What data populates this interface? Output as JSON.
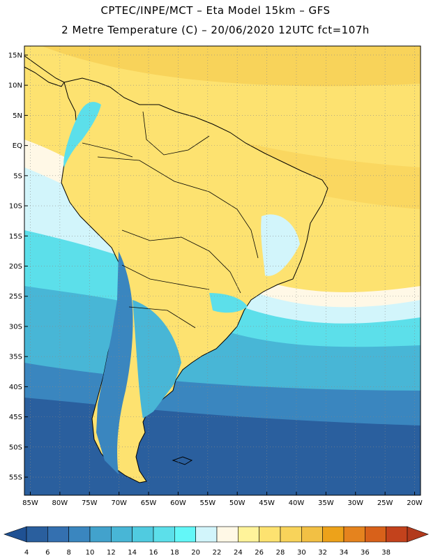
{
  "header": {
    "line1": "CPTEC/INPE/MCT –  Eta Model 15km – GFS",
    "line2": "2 Metre Temperature (C) – 20/06/2020 12UTC fct=107h"
  },
  "lat_labels": [
    {
      "v": 15,
      "t": "15N"
    },
    {
      "v": 10,
      "t": "10N"
    },
    {
      "v": 5,
      "t": "5N"
    },
    {
      "v": 0,
      "t": "EQ"
    },
    {
      "v": -5,
      "t": "5S"
    },
    {
      "v": -10,
      "t": "10S"
    },
    {
      "v": -15,
      "t": "15S"
    },
    {
      "v": -20,
      "t": "20S"
    },
    {
      "v": -25,
      "t": "25S"
    },
    {
      "v": -30,
      "t": "30S"
    },
    {
      "v": -35,
      "t": "35S"
    },
    {
      "v": -40,
      "t": "40S"
    },
    {
      "v": -45,
      "t": "45S"
    },
    {
      "v": -50,
      "t": "50S"
    },
    {
      "v": -55,
      "t": "55S"
    }
  ],
  "lon_labels": [
    {
      "v": -85,
      "t": "85W"
    },
    {
      "v": -80,
      "t": "80W"
    },
    {
      "v": -75,
      "t": "75W"
    },
    {
      "v": -70,
      "t": "70W"
    },
    {
      "v": -65,
      "t": "65W"
    },
    {
      "v": -60,
      "t": "60W"
    },
    {
      "v": -55,
      "t": "55W"
    },
    {
      "v": -50,
      "t": "50W"
    },
    {
      "v": -45,
      "t": "45W"
    },
    {
      "v": -40,
      "t": "40W"
    },
    {
      "v": -35,
      "t": "35W"
    },
    {
      "v": -30,
      "t": "30W"
    },
    {
      "v": -25,
      "t": "25W"
    },
    {
      "v": -20,
      "t": "20W"
    }
  ],
  "colorbar": {
    "labels": [
      "4",
      "6",
      "8",
      "10",
      "12",
      "14",
      "16",
      "18",
      "20",
      "22",
      "24",
      "26",
      "28",
      "30",
      "32",
      "34",
      "36",
      "38"
    ],
    "colors": [
      "#2a5f9e",
      "#3470b0",
      "#3a86bf",
      "#42a2cc",
      "#48b6d6",
      "#50cbe0",
      "#5cdfea",
      "#63f7f8",
      "#d2f5fb",
      "#fff8e6",
      "#fff39a",
      "#fde270",
      "#f8d35a",
      "#f2c044",
      "#eda21a",
      "#e5831e",
      "#d8611a",
      "#c3421c"
    ],
    "under_color": "#1f5193",
    "over_color": "#b23a1c"
  }
}
